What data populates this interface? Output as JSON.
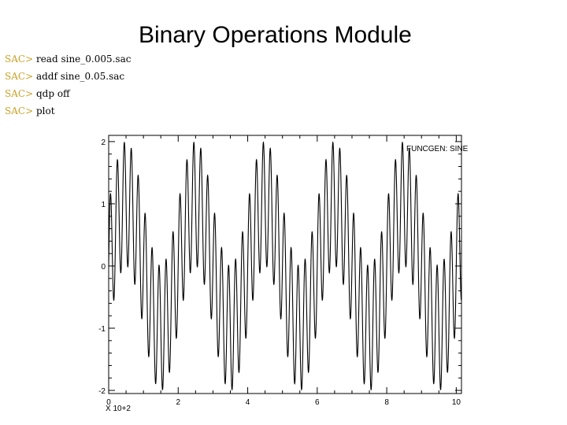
{
  "slide": {
    "title": "Binary Operations Module"
  },
  "commands": [
    {
      "prompt": "SAC>",
      "text": "read sine_0.005.sac"
    },
    {
      "prompt": "SAC>",
      "text": "addf sine_0.05.sac"
    },
    {
      "prompt": "SAC>",
      "text": "qdp off"
    },
    {
      "prompt": "SAC>",
      "text": "plot"
    }
  ],
  "colors": {
    "prompt": "#c9a227",
    "trace": "#000000"
  },
  "chart_data": {
    "type": "line",
    "title": "FUNCGEN: SINE",
    "xlabel": "X 10+2",
    "ylabel": "",
    "xlim": [
      0,
      10.15
    ],
    "ylim": [
      -2.05,
      2.1
    ],
    "xticks": [
      "0",
      "2",
      "4",
      "6",
      "8",
      "10"
    ],
    "yticks": [
      "2",
      "1",
      "0",
      "-1",
      "-2"
    ],
    "xtick_values": [
      0,
      2,
      4,
      6,
      8,
      10
    ],
    "ytick_values": [
      2,
      1,
      0,
      -1,
      -2
    ],
    "series": [
      {
        "components": [
          {
            "amplitude": 1.0,
            "cycles_per_axis_unit": 0.5
          },
          {
            "amplitude": 1.0,
            "cycles_per_axis_unit": 5.0
          }
        ],
        "samples": 4000
      }
    ]
  }
}
